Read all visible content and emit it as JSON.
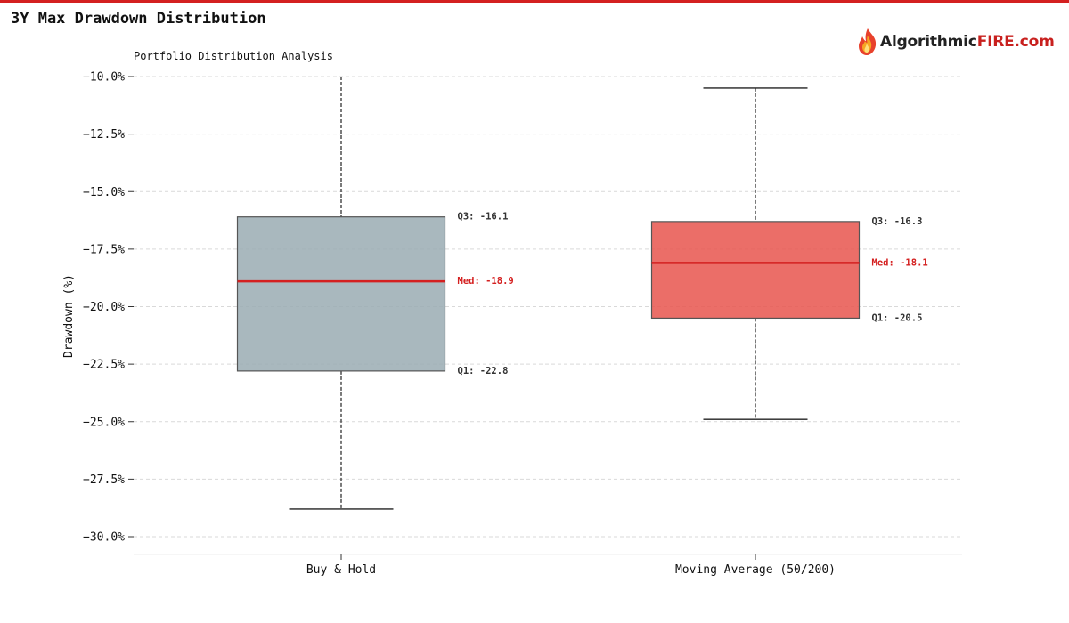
{
  "header": {
    "title": "3Y Max Drawdown Distribution",
    "logo_text_a": "Algorithmic",
    "logo_text_b": "FIRE.com",
    "accent_color": "#d42020"
  },
  "chart_data": {
    "type": "box",
    "title": "Portfolio Distribution Analysis",
    "ylabel": "Drawdown (%)",
    "xlabel": "",
    "ylim": [
      -30.8,
      -10.0
    ],
    "yticks": [
      -10.0,
      -12.5,
      -15.0,
      -17.5,
      -20.0,
      -22.5,
      -25.0,
      -27.5,
      -30.0
    ],
    "ytick_labels": [
      "−10.0%",
      "−12.5%",
      "−15.0%",
      "−17.5%",
      "−20.0%",
      "−22.5%",
      "−25.0%",
      "−27.5%",
      "−30.0%"
    ],
    "grid": true,
    "categories": [
      "Buy & Hold",
      "Moving Average (50/200)"
    ],
    "series": [
      {
        "category": "Buy & Hold",
        "whisker_low": -28.8,
        "q1": -22.8,
        "median": -18.9,
        "q3": -16.1,
        "whisker_high": -10.0,
        "cap_high_shown": false,
        "color": "#9aabb3",
        "q3_label": "Q3: -16.1",
        "median_label": "Med: -18.9",
        "q1_label": "Q1: -22.8"
      },
      {
        "category": "Moving Average (50/200)",
        "whisker_low": -24.9,
        "q1": -20.5,
        "median": -18.1,
        "q3": -16.3,
        "whisker_high": -10.5,
        "cap_high_shown": true,
        "color": "#e8554d",
        "q3_label": "Q3: -16.3",
        "median_label": "Med: -18.1",
        "q1_label": "Q1: -20.5"
      }
    ],
    "median_color": "#d42020"
  }
}
